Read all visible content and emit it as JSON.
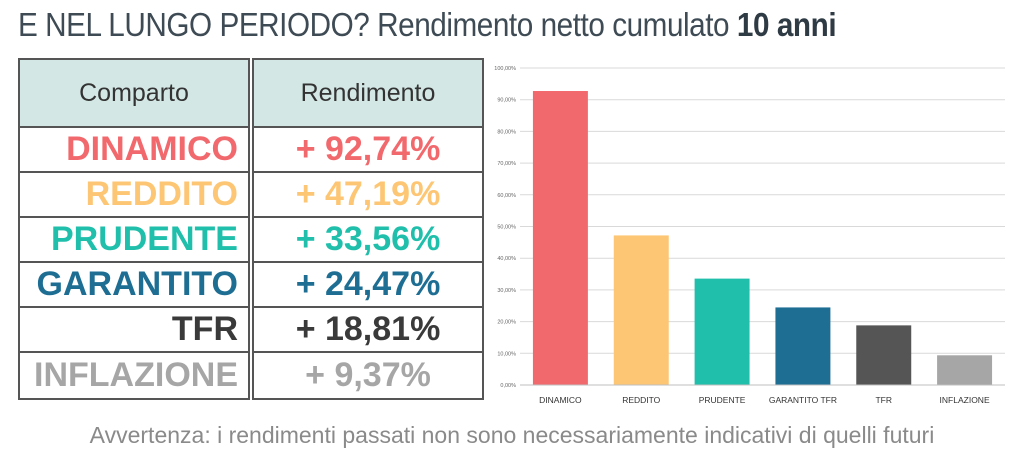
{
  "title": {
    "prefix": "E NEL LUNGO PERIODO?",
    "middle": "Rendimento netto cumulato",
    "bold": "10 anni"
  },
  "table": {
    "col1_header": "Comparto",
    "col2_header": "Rendimento",
    "rows": [
      {
        "name": "DINAMICO",
        "value": "+ 92,74%",
        "color": "#f2696d"
      },
      {
        "name": "REDDITO",
        "value": "+ 47,19%",
        "color": "#fdc674"
      },
      {
        "name": "PRUDENTE",
        "value": "+ 33,56%",
        "color": "#20bfab"
      },
      {
        "name": "GARANTITO",
        "value": "+ 24,47%",
        "color": "#1e6e94"
      },
      {
        "name": "TFR",
        "value": "+ 18,81%",
        "color": "#3a3a3a"
      },
      {
        "name": "INFLAZIONE",
        "value": "+ 9,37%",
        "color": "#a6a6a6"
      }
    ]
  },
  "footer": "Avvertenza: i rendimenti passati non sono necessariamente indicativi di quelli futuri",
  "chart_data": {
    "type": "bar",
    "categories": [
      "DINAMICO",
      "REDDITO",
      "PRUDENTE",
      "GARANTITO TFR",
      "TFR",
      "INFLAZIONE"
    ],
    "values": [
      92.74,
      47.19,
      33.56,
      24.47,
      18.81,
      9.37
    ],
    "colors": [
      "#f2696d",
      "#fdc674",
      "#20bfab",
      "#1e6e94",
      "#555555",
      "#a6a6a6"
    ],
    "ylim": [
      0,
      100
    ],
    "yticks": [
      0,
      10,
      20,
      30,
      40,
      50,
      60,
      70,
      80,
      90,
      100
    ],
    "ytick_labels": [
      "0,00%",
      "10,00%",
      "20,00%",
      "30,00%",
      "40,00%",
      "50,00%",
      "60,00%",
      "70,00%",
      "80,00%",
      "90,00%",
      "100,00%"
    ],
    "grid": true,
    "title": "",
    "xlabel": "",
    "ylabel": ""
  }
}
